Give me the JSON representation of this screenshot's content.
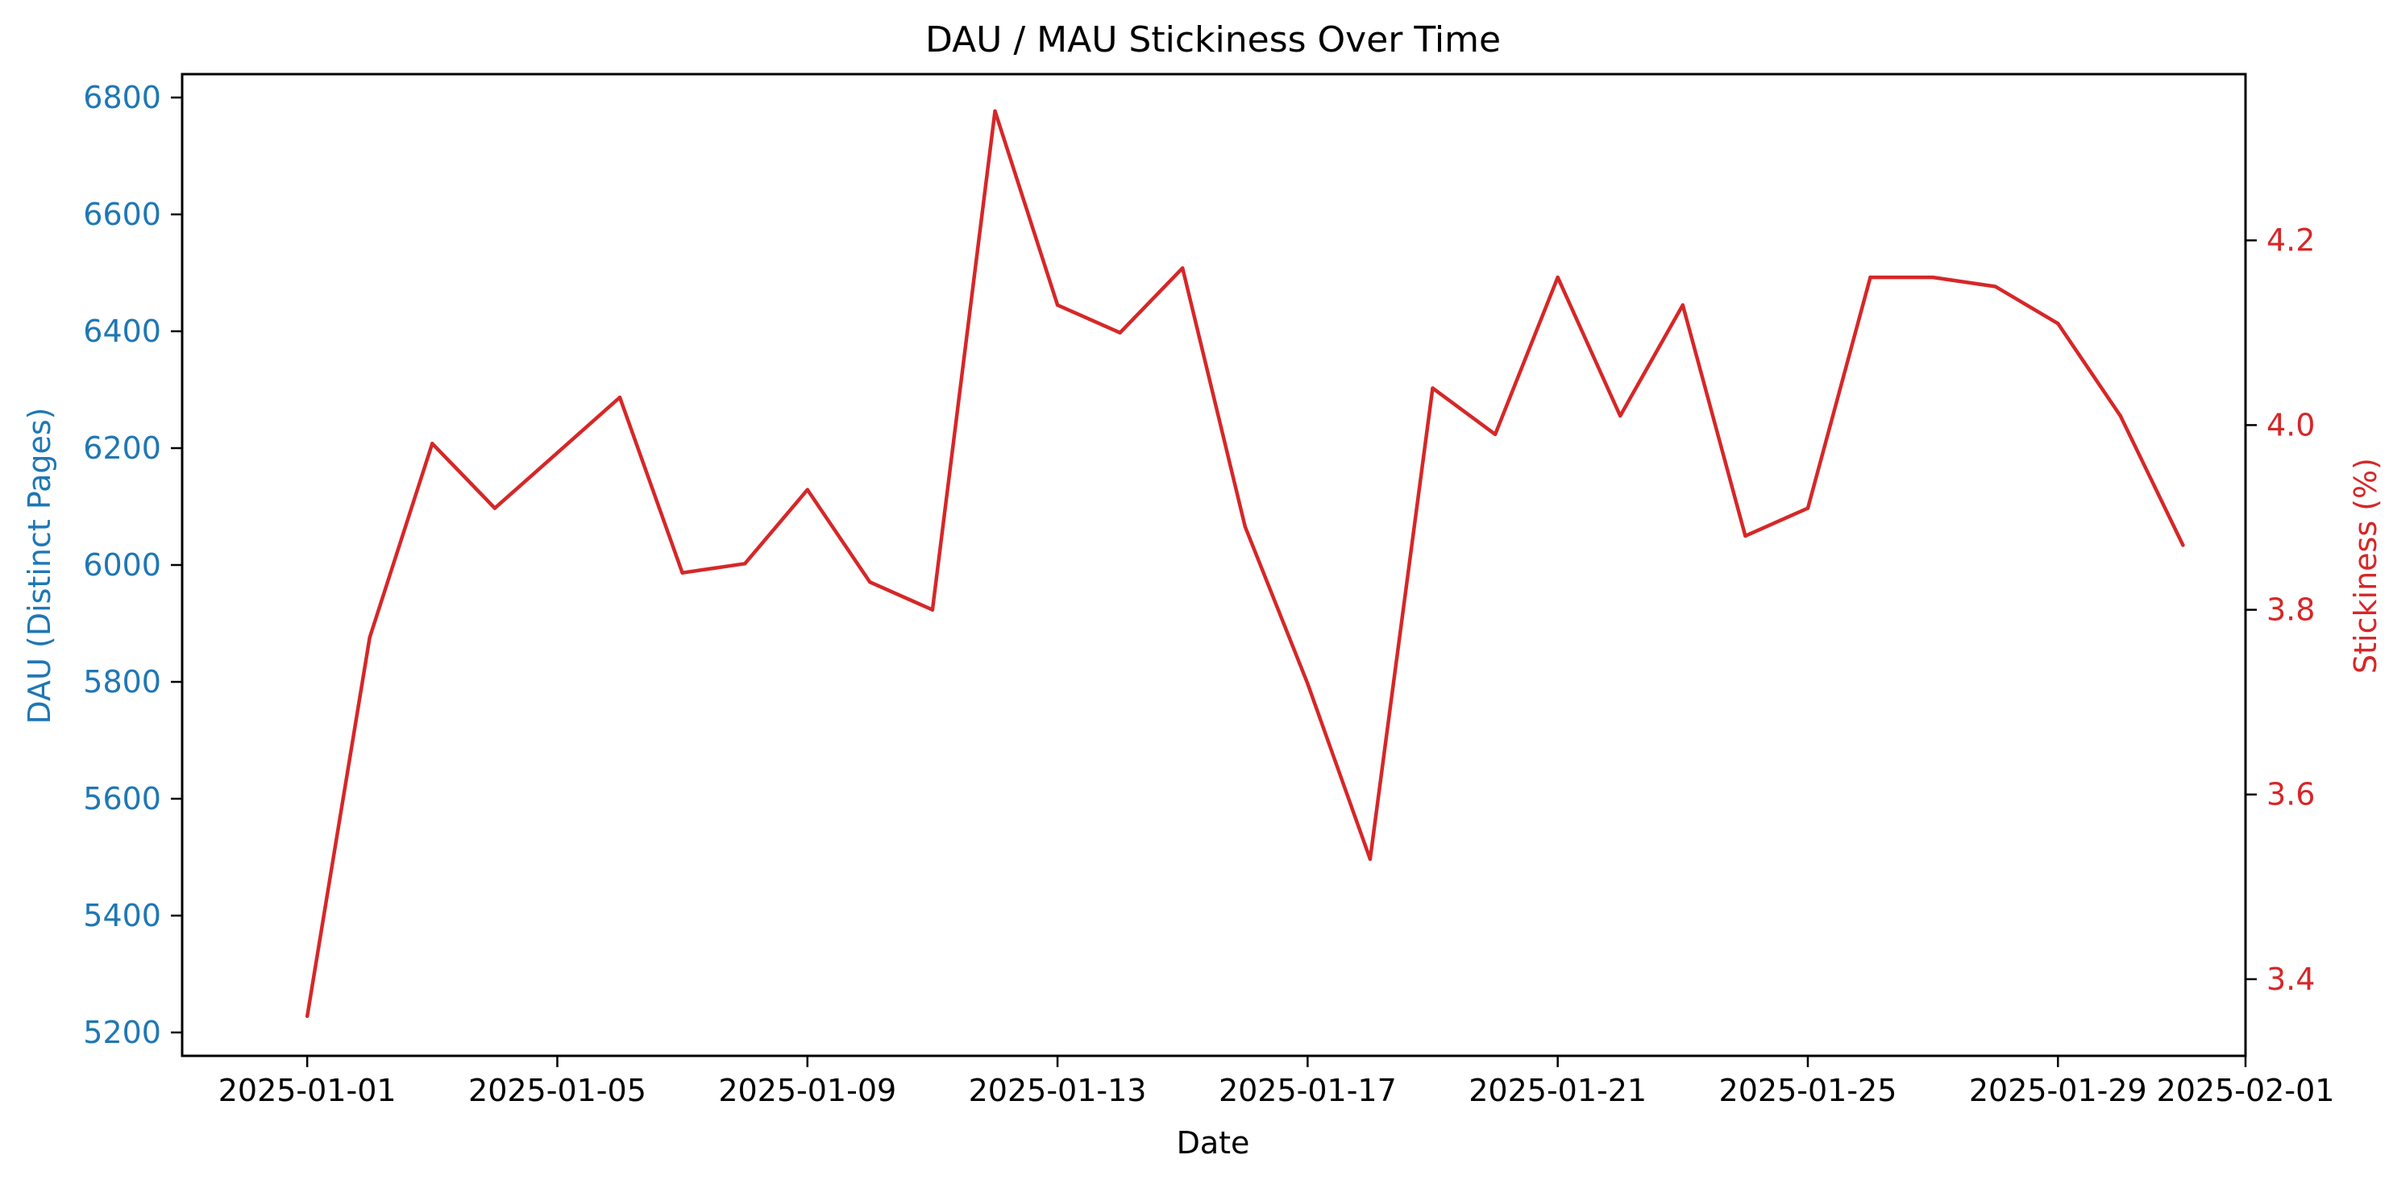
{
  "colors": {
    "dau": "#1f77b4",
    "stickiness": "#d62728",
    "axis": "#000000",
    "background": "#ffffff"
  },
  "chart_data": {
    "type": "line",
    "title": "DAU / MAU Stickiness Over Time",
    "xlabel": "Date",
    "ylabel_left": "DAU (Distinct Pages)",
    "ylabel_right": "Stickiness (%)",
    "grid": false,
    "legend": "none",
    "x_ticks": [
      "2025-01-01",
      "2025-01-05",
      "2025-01-09",
      "2025-01-13",
      "2025-01-17",
      "2025-01-21",
      "2025-01-25",
      "2025-01-29",
      "2025-02-01"
    ],
    "x_range": [
      "2024-12-30",
      "2025-02-01"
    ],
    "y_left_ticks": [
      5200,
      5400,
      5600,
      5800,
      6000,
      6200,
      6400,
      6600,
      6800
    ],
    "y_left_range": [
      5160,
      6840
    ],
    "y_right_ticks": [
      3.4,
      3.6,
      3.8,
      4.0,
      4.2
    ],
    "y_right_range": [
      3.317,
      4.38
    ],
    "x": [
      "2025-01-01",
      "2025-01-02",
      "2025-01-03",
      "2025-01-04",
      "2025-01-05",
      "2025-01-06",
      "2025-01-07",
      "2025-01-08",
      "2025-01-09",
      "2025-01-10",
      "2025-01-11",
      "2025-01-12",
      "2025-01-13",
      "2025-01-14",
      "2025-01-15",
      "2025-01-16",
      "2025-01-17",
      "2025-01-18",
      "2025-01-19",
      "2025-01-20",
      "2025-01-21",
      "2025-01-22",
      "2025-01-23",
      "2025-01-24",
      "2025-01-25",
      "2025-01-26",
      "2025-01-27",
      "2025-01-28",
      "2025-01-29",
      "2025-01-30",
      "2025-01-31"
    ],
    "series": [
      {
        "axis": "right",
        "values": [
          3.36,
          3.77,
          3.98,
          3.91,
          3.97,
          4.03,
          3.84,
          3.85,
          3.93,
          3.83,
          3.8,
          4.34,
          4.13,
          4.1,
          4.17,
          3.89,
          3.72,
          3.53,
          4.04,
          3.99,
          4.16,
          4.01,
          4.13,
          3.88,
          3.91,
          4.16,
          4.16,
          4.15,
          4.11,
          4.01,
          3.87
        ]
      }
    ]
  }
}
